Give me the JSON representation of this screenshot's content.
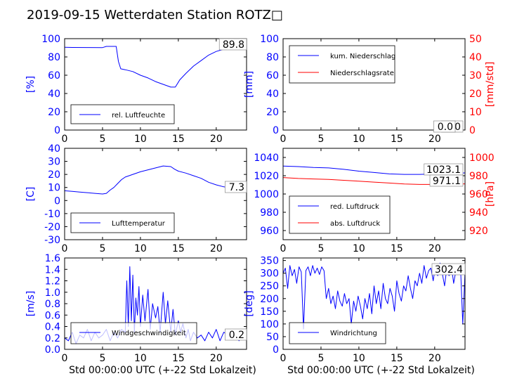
{
  "title": "2019-09-15 Wetterdaten Station ROTZ□",
  "colors": {
    "left_axis": "#0000ff",
    "right_axis": "#ff0000",
    "series_blue": "#0000ff",
    "series_red": "#ff0000",
    "axes": "#000000"
  },
  "chart_data": [
    {
      "id": "humidity",
      "type": "line",
      "xlim": [
        0,
        24
      ],
      "xticks": [
        0,
        5,
        10,
        15,
        20
      ],
      "ylim": [
        0,
        100
      ],
      "yticks": [
        0,
        20,
        40,
        60,
        80,
        100
      ],
      "ylabel": "[%]",
      "legend": {
        "position": "lower-left"
      },
      "current_value": "89.8",
      "series": [
        {
          "name": "rel. Luftfeuchte",
          "color": "#0000ff",
          "x": [
            0,
            1,
            3,
            5,
            5.5,
            6.8,
            7.1,
            7.4,
            8,
            9,
            10,
            11,
            12,
            13,
            14,
            14.6,
            15.2,
            16,
            17,
            18,
            19,
            20,
            21,
            22,
            24
          ],
          "y": [
            90.5,
            90.4,
            90.3,
            90.2,
            91.5,
            91.5,
            75,
            67,
            66,
            64,
            60,
            57,
            53,
            50,
            47,
            47,
            55,
            62,
            70,
            76,
            82,
            86,
            88.5,
            89.5,
            89.8
          ]
        }
      ]
    },
    {
      "id": "precipitation",
      "type": "line",
      "xlim": [
        0,
        24
      ],
      "xticks": [
        0,
        5,
        10,
        15,
        20
      ],
      "ylim": [
        0,
        100
      ],
      "yticks": [
        0,
        20,
        40,
        60,
        80,
        100
      ],
      "ylabel": "[mm]",
      "y2lim": [
        0,
        50
      ],
      "y2ticks": [
        0,
        10,
        20,
        30,
        40,
        50
      ],
      "y2label": "[mm/std]",
      "legend": {
        "position": "upper-left"
      },
      "current_values": [
        "0.0",
        "0.0"
      ],
      "series": [
        {
          "name": "kum. Niederschlag",
          "color": "#0000ff",
          "axis": "left",
          "x": [
            0,
            24
          ],
          "y": [
            0,
            0
          ]
        },
        {
          "name": "Niederschlagsrate",
          "color": "#ff0000",
          "axis": "right",
          "x": [
            0,
            24
          ],
          "y": [
            0,
            0
          ]
        }
      ]
    },
    {
      "id": "temperature",
      "type": "line",
      "xlim": [
        0,
        24
      ],
      "xticks": [
        0,
        5,
        10,
        15,
        20
      ],
      "ylim": [
        -30,
        40
      ],
      "yticks": [
        -30,
        -20,
        -10,
        0,
        10,
        20,
        30,
        40
      ],
      "ylabel": "[C]",
      "legend": {
        "position": "lower-left"
      },
      "current_value": "7.3",
      "series": [
        {
          "name": "Lufttemperatur",
          "color": "#0000ff",
          "x": [
            0,
            1,
            2,
            3,
            4,
            5,
            5.5,
            6,
            6.5,
            7,
            7.5,
            8,
            9,
            10,
            11,
            12,
            13,
            14,
            14.5,
            15,
            16,
            17,
            18,
            19,
            20,
            21,
            22,
            24
          ],
          "y": [
            7.5,
            7,
            6.5,
            6,
            5.5,
            5,
            5.5,
            8,
            10,
            13,
            16,
            18,
            20,
            22,
            23.5,
            25,
            26.5,
            26,
            24,
            22.5,
            21,
            19,
            17,
            14,
            12,
            10.5,
            9.5,
            7.3
          ]
        }
      ]
    },
    {
      "id": "pressure",
      "type": "line",
      "xlim": [
        0,
        24
      ],
      "xticks": [
        0,
        5,
        10,
        15,
        20
      ],
      "ylim": [
        950,
        1050
      ],
      "yticks": [
        960,
        980,
        1000,
        1020,
        1040
      ],
      "y2lim": [
        910,
        1010
      ],
      "y2ticks": [
        920,
        940,
        960,
        980,
        1000
      ],
      "y2label": "[hPa]",
      "legend": {
        "position": "lower-left"
      },
      "current_values": [
        "1023.1",
        "971.1"
      ],
      "series": [
        {
          "name": "red. Luftdruck",
          "color": "#0000ff",
          "axis": "left",
          "x": [
            0,
            2,
            4,
            6,
            8,
            10,
            12,
            14,
            16,
            18,
            20,
            22,
            24
          ],
          "y": [
            1030.5,
            1030,
            1029,
            1028.5,
            1027,
            1025,
            1023.5,
            1022,
            1021.5,
            1021.5,
            1022,
            1022.5,
            1023.1
          ]
        },
        {
          "name": "abs. Luftdruck",
          "color": "#ff0000",
          "axis": "right",
          "x": [
            0,
            2,
            4,
            6,
            8,
            10,
            12,
            14,
            16,
            18,
            20,
            22,
            24
          ],
          "y": [
            978,
            977,
            976.5,
            976,
            975,
            974,
            973,
            972,
            971,
            970.5,
            970.5,
            971,
            971.1
          ]
        }
      ]
    },
    {
      "id": "wind_speed",
      "type": "line",
      "xlim": [
        0,
        24
      ],
      "xticks": [
        0,
        5,
        10,
        15,
        20
      ],
      "ylim": [
        0,
        1.6
      ],
      "yticks": [
        0.0,
        0.2,
        0.4,
        0.6,
        0.8,
        1.0,
        1.2,
        1.4,
        1.6
      ],
      "ylabel": "[m/s]",
      "xlabel": "Std 00:00:00 UTC (+-22 Std Lokalzeit)",
      "legend": {
        "position": "lower-left"
      },
      "current_value": "0.2",
      "series": [
        {
          "name": "Windgeschwindigkeit",
          "color": "#0000ff",
          "x": [
            0,
            0.5,
            1,
            1.5,
            2,
            2.5,
            3,
            3.5,
            4,
            4.5,
            5,
            5.5,
            6,
            6.5,
            7,
            7.5,
            8,
            8.2,
            8.4,
            8.6,
            8.8,
            9,
            9.2,
            9.4,
            9.6,
            9.8,
            10,
            10.3,
            10.6,
            11,
            11.3,
            11.6,
            12,
            12.3,
            12.6,
            13,
            13.3,
            13.6,
            14,
            14.3,
            14.6,
            15,
            15.3,
            15.6,
            16,
            16.3,
            16.6,
            17,
            17.5,
            18,
            18.5,
            19,
            19.5,
            20,
            20.5,
            21,
            21.5,
            22,
            22.5,
            23,
            23.5,
            24
          ],
          "y": [
            0.2,
            0.15,
            0.3,
            0.1,
            0.25,
            0.2,
            0.35,
            0.15,
            0.3,
            0.2,
            0.25,
            0.35,
            0.15,
            0.3,
            0.2,
            0.35,
            0.3,
            1.2,
            0.4,
            1.45,
            0.5,
            1.3,
            0.3,
            0.9,
            0.6,
            1.1,
            0.4,
            0.95,
            0.5,
            1.05,
            0.35,
            0.8,
            0.55,
            0.75,
            0.3,
            1.0,
            0.45,
            0.85,
            0.3,
            0.7,
            0.25,
            0.5,
            0.3,
            0.45,
            0.2,
            0.35,
            0.15,
            0.3,
            0.2,
            0.25,
            0.15,
            0.3,
            0.2,
            0.35,
            0.15,
            0.3,
            0.25,
            0.2,
            0.3,
            0.15,
            0.25,
            0.2
          ]
        }
      ]
    },
    {
      "id": "wind_direction",
      "type": "line",
      "xlim": [
        0,
        24
      ],
      "xticks": [
        0,
        5,
        10,
        15,
        20
      ],
      "ylim": [
        0,
        360
      ],
      "yticks": [
        0,
        50,
        100,
        150,
        200,
        250,
        300,
        350
      ],
      "ylabel": "[deg]",
      "xlabel": "Std 00:00:00 UTC (+-22 Std Lokalzeit)",
      "legend": {
        "position": "lower-left"
      },
      "current_value": "302.4",
      "series": [
        {
          "name": "Windrichtung",
          "color": "#0000ff",
          "x": [
            0,
            0.3,
            0.6,
            0.9,
            1.2,
            1.5,
            1.8,
            2.1,
            2.4,
            2.7,
            3,
            3.3,
            3.6,
            3.9,
            4.2,
            4.5,
            4.8,
            5.1,
            5.4,
            5.7,
            6,
            6.3,
            6.6,
            6.9,
            7.2,
            7.5,
            7.8,
            8.1,
            8.4,
            8.7,
            9,
            9.3,
            9.6,
            9.9,
            10.2,
            10.5,
            10.8,
            11.1,
            11.4,
            11.7,
            12,
            12.3,
            12.6,
            12.9,
            13.2,
            13.5,
            13.8,
            14.1,
            14.4,
            14.7,
            15,
            15.3,
            15.6,
            15.9,
            16.2,
            16.5,
            16.8,
            17.1,
            17.4,
            17.7,
            18,
            18.3,
            18.6,
            18.9,
            19.2,
            19.5,
            19.8,
            20.1,
            20.4,
            20.7,
            21,
            21.3,
            21.6,
            21.9,
            22.2,
            22.5,
            22.8,
            23.1,
            23.4,
            23.7,
            24
          ],
          "y": [
            300,
            320,
            240,
            330,
            290,
            315,
            260,
            325,
            305,
            80,
            310,
            325,
            290,
            330,
            300,
            320,
            295,
            325,
            310,
            200,
            240,
            180,
            210,
            160,
            230,
            190,
            170,
            220,
            180,
            200,
            100,
            190,
            150,
            210,
            170,
            120,
            200,
            160,
            220,
            140,
            250,
            180,
            230,
            160,
            260,
            200,
            180,
            240,
            210,
            150,
            270,
            220,
            190,
            250,
            230,
            290,
            240,
            200,
            270,
            250,
            300,
            260,
            330,
            280,
            310,
            320,
            270,
            330,
            290,
            340,
            300,
            250,
            320,
            290,
            330,
            260,
            310,
            300,
            330,
            100,
            302.4
          ]
        }
      ]
    }
  ]
}
